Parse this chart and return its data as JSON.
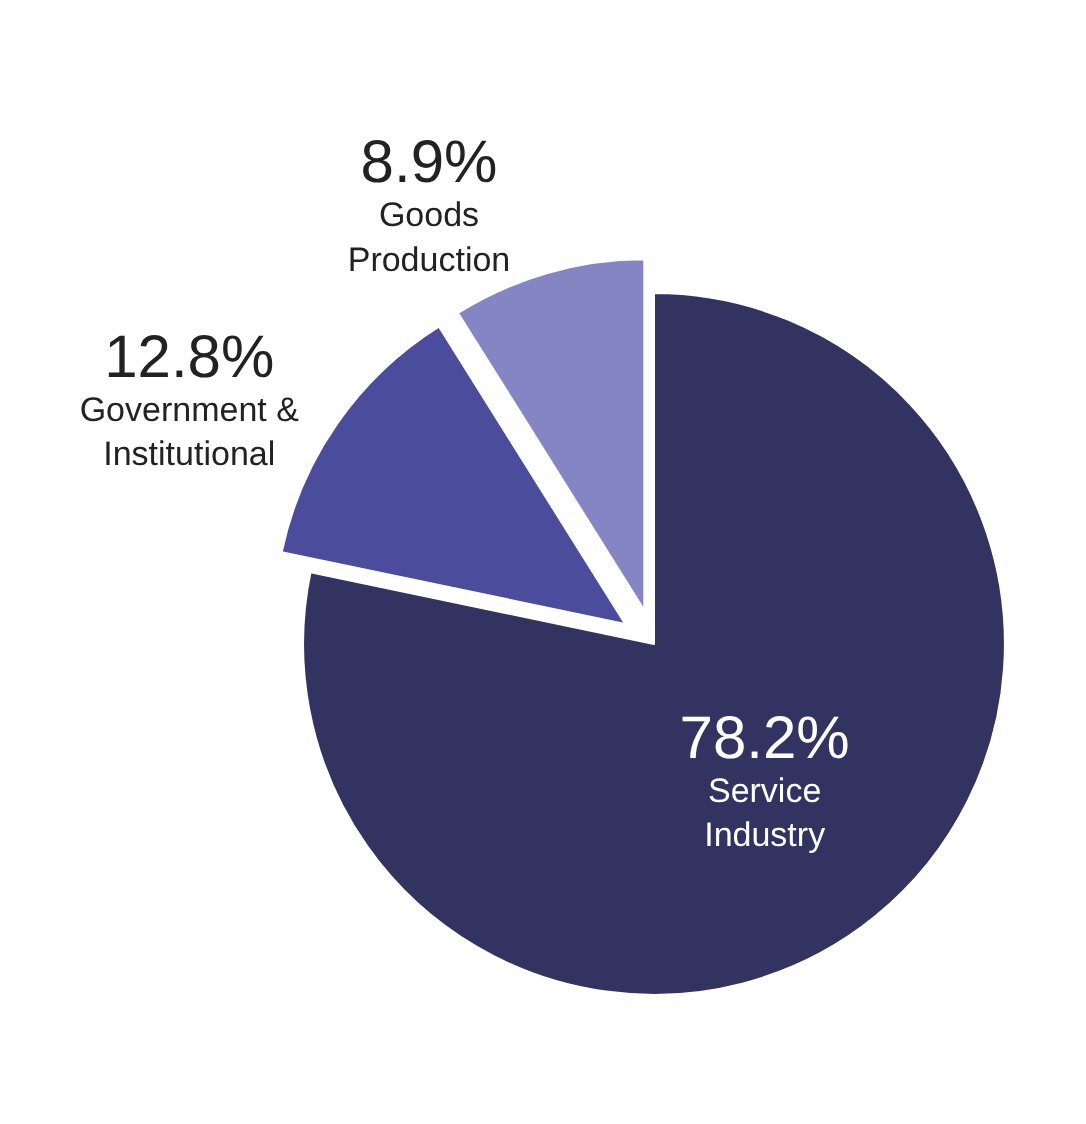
{
  "chart_data": {
    "type": "pie",
    "categories": [
      "Service Industry",
      "Government & Institutional",
      "Goods Production"
    ],
    "values": [
      78.2,
      12.8,
      8.9
    ],
    "value_labels": [
      "78.2%",
      "12.8%",
      "8.9%"
    ],
    "colors": [
      "#323360",
      "#4b4d9c",
      "#8585c3"
    ],
    "legend": false
  }
}
